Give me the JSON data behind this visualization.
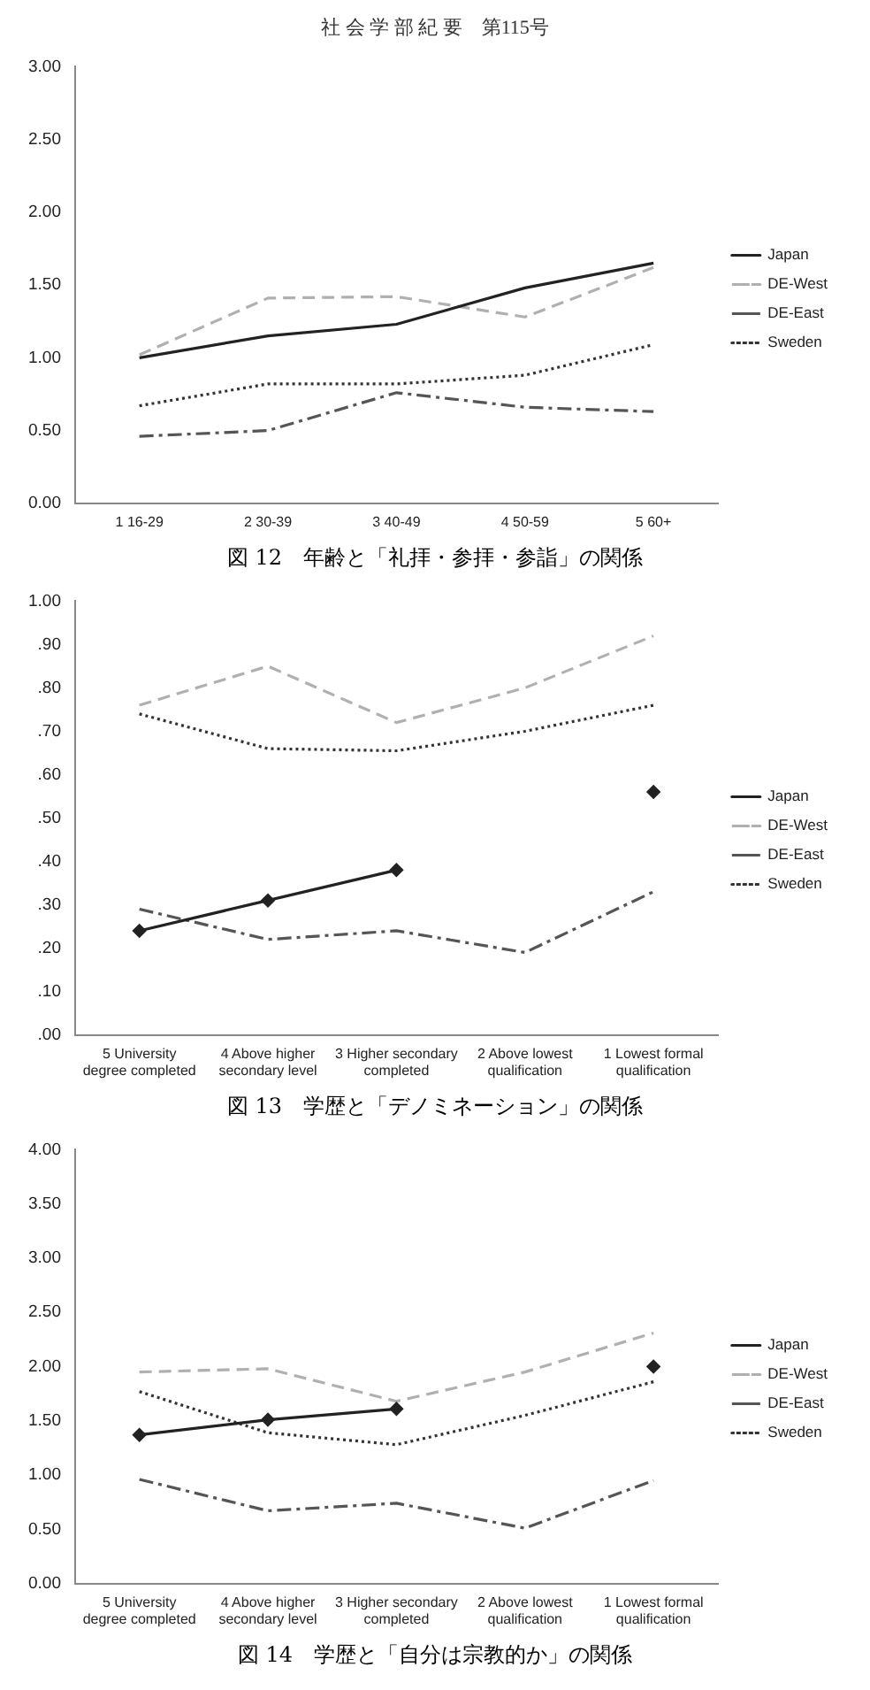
{
  "chart_data": [
    {
      "type": "line",
      "title": "図 12　年齢と「礼拝・参拝・参詣」の関係",
      "annotations": [
        "社 会 学 部 紀 要　第115号"
      ],
      "categories": [
        "1 16-29",
        "2 30-39",
        "3 40-49",
        "4 50-59",
        "5 60+"
      ],
      "ylim": [
        0,
        3
      ],
      "yticks": [
        {
          "value": 0,
          "label": "0.00"
        },
        {
          "value": 0.5,
          "label": "0.50"
        },
        {
          "value": 1,
          "label": "1.00"
        },
        {
          "value": 1.5,
          "label": "1.50"
        },
        {
          "value": 2,
          "label": "2.00"
        },
        {
          "value": 2.5,
          "label": "2.50"
        },
        {
          "value": 3,
          "label": "3.00"
        }
      ],
      "grid": false,
      "legend": "right",
      "series": [
        {
          "name": "Japan",
          "color": "#222222",
          "line_style": "solid",
          "values": [
            1.0,
            1.15,
            1.23,
            1.48,
            1.65
          ]
        },
        {
          "name": "DE-West",
          "color": "#b0b0b0",
          "line_style": "dashed",
          "values": [
            1.02,
            1.41,
            1.42,
            1.28,
            1.62
          ]
        },
        {
          "name": "DE-East",
          "color": "#555555",
          "line_style": "dashdot",
          "values": [
            0.46,
            0.5,
            0.76,
            0.66,
            0.63
          ]
        },
        {
          "name": "Sweden",
          "color": "#333333",
          "line_style": "dotted",
          "values": [
            0.67,
            0.82,
            0.82,
            0.88,
            1.09
          ]
        }
      ]
    },
    {
      "type": "line",
      "title": "図 13　学歴と「デノミネーション」の関係",
      "categories": [
        "5 University degree completed",
        "4 Above higher secondary level",
        "3 Higher secondary completed",
        "2 Above lowest qualification",
        "1 Lowest formal qualification"
      ],
      "ylim": [
        0,
        1
      ],
      "yticks": [
        {
          "value": 0,
          "label": ".00"
        },
        {
          "value": 0.1,
          "label": ".10"
        },
        {
          "value": 0.2,
          "label": ".20"
        },
        {
          "value": 0.3,
          "label": ".30"
        },
        {
          "value": 0.4,
          "label": ".40"
        },
        {
          "value": 0.5,
          "label": ".50"
        },
        {
          "value": 0.6,
          "label": ".60"
        },
        {
          "value": 0.7,
          "label": ".70"
        },
        {
          "value": 0.8,
          "label": ".80"
        },
        {
          "value": 0.9,
          "label": ".90"
        },
        {
          "value": 1,
          "label": "1.00"
        }
      ],
      "grid": false,
      "legend": "right",
      "series": [
        {
          "name": "Japan",
          "color": "#222222",
          "line_style": "solid",
          "marker": "diamond",
          "values": [
            0.24,
            0.31,
            0.38,
            null,
            0.56
          ]
        },
        {
          "name": "DE-West",
          "color": "#b0b0b0",
          "line_style": "dashed",
          "values": [
            0.76,
            0.85,
            0.72,
            0.8,
            0.92
          ]
        },
        {
          "name": "DE-East",
          "color": "#555555",
          "line_style": "dashdot",
          "values": [
            0.29,
            0.22,
            0.24,
            0.19,
            0.33
          ]
        },
        {
          "name": "Sweden",
          "color": "#333333",
          "line_style": "dotted",
          "values": [
            0.74,
            0.66,
            0.655,
            0.7,
            0.76
          ]
        }
      ]
    },
    {
      "type": "line",
      "title": "図 14　学歴と「自分は宗教的か」の関係",
      "categories": [
        "5 University degree completed",
        "4 Above higher secondary level",
        "3 Higher secondary completed",
        "2 Above lowest qualification",
        "1 Lowest formal qualification"
      ],
      "ylim": [
        0,
        4
      ],
      "yticks": [
        {
          "value": 0,
          "label": "0.00"
        },
        {
          "value": 0.5,
          "label": "0.50"
        },
        {
          "value": 1,
          "label": "1.00"
        },
        {
          "value": 1.5,
          "label": "1.50"
        },
        {
          "value": 2,
          "label": "2.00"
        },
        {
          "value": 2.5,
          "label": "2.50"
        },
        {
          "value": 3,
          "label": "3.00"
        },
        {
          "value": 3.5,
          "label": "3.50"
        },
        {
          "value": 4,
          "label": "4.00"
        }
      ],
      "grid": false,
      "legend": "right",
      "series": [
        {
          "name": "Japan",
          "color": "#222222",
          "line_style": "solid",
          "marker": "diamond",
          "values": [
            1.37,
            1.51,
            1.61,
            null,
            2.0
          ]
        },
        {
          "name": "DE-West",
          "color": "#b0b0b0",
          "line_style": "dashed",
          "values": [
            1.95,
            1.98,
            1.68,
            1.95,
            2.31
          ]
        },
        {
          "name": "DE-East",
          "color": "#555555",
          "line_style": "dashdot",
          "values": [
            0.96,
            0.67,
            0.74,
            0.51,
            0.95
          ]
        },
        {
          "name": "Sweden",
          "color": "#333333",
          "line_style": "dotted",
          "values": [
            1.77,
            1.39,
            1.28,
            1.55,
            1.86
          ]
        }
      ]
    }
  ]
}
